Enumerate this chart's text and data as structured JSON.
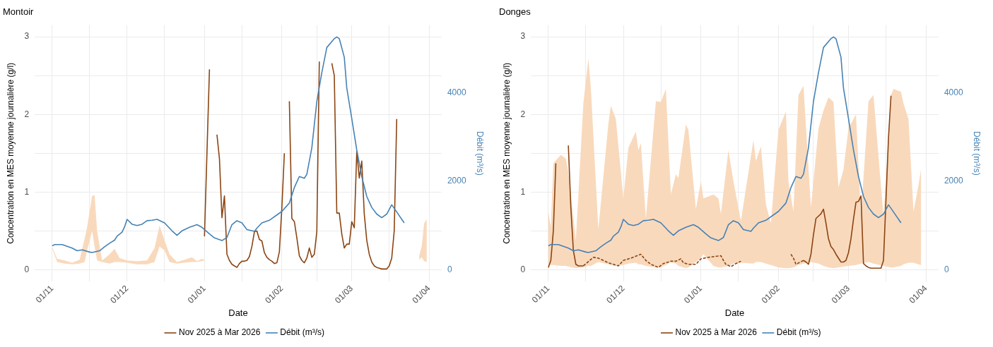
{
  "chart_data": [
    {
      "type": "line",
      "title": "Montoir",
      "xlabel": "Date",
      "ylabel": "Concentration en MES moyenne journalière (g/l)",
      "y2label": "Débit (m³/s)",
      "xlim": [
        "2025-10-25",
        "2026-04-06"
      ],
      "xticks": [
        {
          "value": "2025-11-01",
          "label": "01/11"
        },
        {
          "value": "2025-11-16",
          "label": null
        },
        {
          "value": "2025-12-01",
          "label": "01/12"
        },
        {
          "value": "2025-12-16",
          "label": null
        },
        {
          "value": "2026-01-01",
          "label": "01/01"
        },
        {
          "value": "2026-01-16",
          "label": null
        },
        {
          "value": "2026-02-01",
          "label": "01/02"
        },
        {
          "value": "2026-02-15",
          "label": null
        },
        {
          "value": "2026-03-01",
          "label": "01/03"
        },
        {
          "value": "2026-03-16",
          "label": null
        },
        {
          "value": "2026-04-01",
          "label": "01/04"
        }
      ],
      "ylim": [
        -0.15,
        3.15
      ],
      "yticks": [
        0,
        {
          "value": 0.5,
          "label": null
        },
        1,
        {
          "value": 1.5,
          "label": null
        },
        2,
        {
          "value": 2.5,
          "label": null
        },
        3
      ],
      "y2lim": [
        -264,
        5537
      ],
      "y2ticks": [
        0,
        2000,
        4000
      ],
      "grid": true,
      "legend": "bottom",
      "series": [
        {
          "type": "area",
          "color": "#f9d9bc",
          "values": [
            null,
            null,
            null,
            null,
            null,
            null,
            null,
            null,
            null,
            null,
            null,
            null,
            null,
            null,
            null,
            null,
            null,
            null,
            null,
            null,
            null,
            null,
            null,
            null,
            null,
            null,
            null,
            null,
            null,
            null,
            null,
            null
          ],
          "x": [
            "2025-11-01",
            "2025-11-03",
            "2025-11-06",
            "2025-11-09",
            "2025-11-12",
            "2025-11-14",
            "2025-11-15",
            "2025-11-17",
            "2025-11-18",
            "2025-11-19",
            "2025-11-21",
            "2025-11-24",
            "2025-11-26",
            "2025-11-28",
            "2025-12-01",
            "2025-12-05",
            "2025-12-09",
            "2025-12-12",
            "2025-12-14",
            "2025-12-16",
            "2025-12-18",
            "2025-12-21",
            "2025-12-24",
            "2025-12-27",
            "2025-12-29",
            "2025-12-31",
            "2026-01-01",
            "2026-01-02",
            "2026-03-28",
            "2026-03-29",
            "2026-03-30",
            "2026-03-31"
          ],
          "lower": [
            0.27,
            0.1,
            0.08,
            0.07,
            0.08,
            0.1,
            0.25,
            0.5,
            0.3,
            0.12,
            0.1,
            0.08,
            0.1,
            0.1,
            0.09,
            0.07,
            0.07,
            0.1,
            0.3,
            0.25,
            0.1,
            0.08,
            0.09,
            0.1,
            0.1,
            0.11,
            0.12,
            null,
            0.13,
            0.16,
            0.11,
            0.1
          ],
          "upper": [
            0.29,
            0.14,
            0.12,
            0.09,
            0.13,
            0.4,
            0.55,
            0.95,
            0.96,
            0.5,
            0.12,
            0.2,
            0.27,
            0.15,
            0.12,
            0.11,
            0.12,
            0.28,
            0.57,
            0.38,
            0.2,
            0.1,
            0.13,
            0.16,
            0.11,
            0.14,
            0.13,
            null,
            0.18,
            0.3,
            0.6,
            0.65
          ]
        },
        {
          "name": "Nov 2025 à Mar 2026",
          "color": "#8b4513",
          "x": [
            "2026-01-01",
            "2026-01-03",
            "2026-01-04",
            "2026-01-06",
            "2026-01-07",
            "2026-01-08",
            "2026-01-09",
            "2026-01-10",
            "2026-01-11",
            "2026-01-12",
            "2026-01-13",
            "2026-01-14",
            "2026-01-15",
            "2026-01-16",
            "2026-01-17",
            "2026-01-18",
            "2026-01-19",
            "2026-01-20",
            "2026-01-21",
            "2026-01-22",
            "2026-01-23",
            "2026-01-24",
            "2026-01-25",
            "2026-01-26",
            "2026-01-27",
            "2026-01-28",
            "2026-01-29",
            "2026-01-30",
            "2026-01-31",
            "2026-02-01",
            "2026-02-02",
            "2026-02-03",
            "2026-02-04",
            "2026-02-05",
            "2026-02-06",
            "2026-02-07",
            "2026-02-08",
            "2026-02-09",
            "2026-02-10",
            "2026-02-11",
            "2026-02-12",
            "2026-02-13",
            "2026-02-14",
            "2026-02-15",
            "2026-02-16",
            "2026-02-17",
            "2026-02-21",
            "2026-02-22",
            "2026-02-23",
            "2026-02-24",
            "2026-02-25",
            "2026-02-26",
            "2026-02-27",
            "2026-02-28",
            "2026-03-01",
            "2026-03-02",
            "2026-03-03",
            "2026-03-04",
            "2026-03-05",
            "2026-03-06",
            "2026-03-07",
            "2026-03-08",
            "2026-03-09",
            "2026-03-10",
            "2026-03-11",
            "2026-03-12",
            "2026-03-13",
            "2026-03-14",
            "2026-03-15",
            "2026-03-16",
            "2026-03-17",
            "2026-03-18",
            "2026-03-19"
          ],
          "values": [
            0.43,
            2.58,
            null,
            1.74,
            1.43,
            0.67,
            0.95,
            0.2,
            0.12,
            0.07,
            0.05,
            0.03,
            0.08,
            0.11,
            0.11,
            0.12,
            0.17,
            0.3,
            0.49,
            0.5,
            0.39,
            0.37,
            0.22,
            0.16,
            0.13,
            0.11,
            0.08,
            0.09,
            0.23,
            0.8,
            1.5,
            null,
            2.17,
            0.66,
            0.62,
            0.41,
            0.18,
            0.12,
            0.09,
            0.15,
            0.28,
            0.16,
            0.2,
            0.49,
            2.68,
            null,
            2.66,
            2.5,
            0.73,
            0.73,
            0.46,
            0.28,
            0.33,
            0.33,
            0.62,
            0.54,
            1.52,
            1.18,
            1.4,
            0.72,
            0.38,
            0.2,
            0.1,
            0.05,
            0.03,
            0.02,
            0.01,
            0.01,
            0.01,
            0.05,
            0.15,
            0.5,
            1.94
          ]
        },
        {
          "name": "Débit (m³/s)",
          "color": "#4682b4",
          "axis": "y2",
          "x": [
            "2025-11-01",
            "2025-11-02",
            "2025-11-05",
            "2025-11-09",
            "2025-11-11",
            "2025-11-13",
            "2025-11-16",
            "2025-11-17",
            "2025-11-20",
            "2025-11-22",
            "2025-11-24",
            "2025-11-26",
            "2025-11-27",
            "2025-11-29",
            "2025-11-30",
            "2025-12-01",
            "2025-12-03",
            "2025-12-05",
            "2025-12-07",
            "2025-12-09",
            "2025-12-11",
            "2025-12-13",
            "2025-12-16",
            "2025-12-19",
            "2025-12-21",
            "2025-12-23",
            "2025-12-26",
            "2025-12-29",
            "2025-12-31",
            "2026-01-03",
            "2026-01-05",
            "2026-01-08",
            "2026-01-10",
            "2026-01-12",
            "2026-01-14",
            "2026-01-16",
            "2026-01-18",
            "2026-01-21",
            "2026-01-22",
            "2026-01-24",
            "2026-01-27",
            "2026-01-30",
            "2026-02-01",
            "2026-02-04",
            "2026-02-06",
            "2026-02-08",
            "2026-02-10",
            "2026-02-11",
            "2026-02-13",
            "2026-02-15",
            "2026-02-17",
            "2026-02-19",
            "2026-02-22",
            "2026-02-23",
            "2026-02-24",
            "2026-02-26",
            "2026-02-27",
            "2026-03-01",
            "2026-03-03",
            "2026-03-05",
            "2026-03-07",
            "2026-03-09",
            "2026-03-11",
            "2026-03-13",
            "2026-03-15",
            "2026-03-17",
            "2026-03-18",
            "2026-03-22"
          ],
          "values": [
            540,
            570,
            570,
            490,
            430,
            450,
            400,
            390,
            430,
            520,
            600,
            670,
            760,
            850,
            970,
            1140,
            1030,
            1000,
            1030,
            1110,
            1120,
            1140,
            1060,
            880,
            780,
            880,
            960,
            1020,
            960,
            810,
            720,
            660,
            730,
            1020,
            1110,
            1060,
            910,
            870,
            940,
            1060,
            1120,
            1240,
            1320,
            1510,
            1860,
            2110,
            2070,
            2160,
            2760,
            3810,
            4460,
            5030,
            5230,
            5270,
            5230,
            4810,
            4110,
            3420,
            2710,
            2110,
            1660,
            1410,
            1260,
            1180,
            1260,
            1470,
            1390,
            1060
          ]
        }
      ]
    },
    {
      "type": "line",
      "title": "Donges",
      "xlabel": "Date",
      "ylabel": "Concentration en MES moyenne journalière (g/l)",
      "y2label": "Débit (m³/s)",
      "xlim": [
        "2025-10-25",
        "2026-04-06"
      ],
      "xticks": [
        {
          "value": "2025-11-01",
          "label": "01/11"
        },
        {
          "value": "2025-11-16",
          "label": null
        },
        {
          "value": "2025-12-01",
          "label": "01/12"
        },
        {
          "value": "2025-12-16",
          "label": null
        },
        {
          "value": "2026-01-01",
          "label": "01/01"
        },
        {
          "value": "2026-01-16",
          "label": null
        },
        {
          "value": "2026-02-01",
          "label": "01/02"
        },
        {
          "value": "2026-02-15",
          "label": null
        },
        {
          "value": "2026-03-01",
          "label": "01/03"
        },
        {
          "value": "2026-03-16",
          "label": null
        },
        {
          "value": "2026-04-01",
          "label": "01/04"
        }
      ],
      "ylim": [
        -0.15,
        3.15
      ],
      "yticks": [
        0,
        {
          "value": 0.5,
          "label": null
        },
        1,
        {
          "value": 1.5,
          "label": null
        },
        2,
        {
          "value": 2.5,
          "label": null
        },
        3
      ],
      "y2lim": [
        -264,
        5537
      ],
      "y2ticks": [
        0,
        2000,
        4000
      ],
      "grid": true,
      "legend": "bottom",
      "series": [
        {
          "type": "area",
          "color": "#f9d9bc",
          "values": [
            null,
            null,
            null,
            null,
            null,
            null,
            null,
            null,
            null,
            null,
            null,
            null,
            null,
            null,
            null,
            null,
            null,
            null,
            null,
            null,
            null,
            null,
            null,
            null,
            null,
            null,
            null,
            null,
            null,
            null,
            null,
            null,
            null,
            null,
            null,
            null,
            null,
            null,
            null,
            null,
            null,
            null,
            null,
            null,
            null,
            null,
            null,
            null,
            null,
            null,
            null,
            null,
            null,
            null,
            null,
            null,
            null,
            null,
            null,
            null,
            null,
            null,
            null,
            null,
            null,
            null,
            null,
            null,
            null
          ],
          "x": [
            "2025-11-01",
            "2025-11-02",
            "2025-11-03",
            "2025-11-06",
            "2025-11-08",
            "2025-11-09",
            "2025-11-12",
            "2025-11-15",
            "2025-11-17",
            "2025-11-18",
            "2025-11-21",
            "2025-11-25",
            "2025-11-26",
            "2025-11-28",
            "2025-12-01",
            "2025-12-03",
            "2025-12-06",
            "2025-12-07",
            "2025-12-08",
            "2025-12-10",
            "2025-12-14",
            "2025-12-16",
            "2025-12-18",
            "2025-12-20",
            "2025-12-22",
            "2025-12-23",
            "2025-12-26",
            "2025-12-27",
            "2025-12-30",
            "2026-01-01",
            "2026-01-02",
            "2026-01-06",
            "2026-01-08",
            "2026-01-09",
            "2026-01-12",
            "2026-01-14",
            "2026-01-17",
            "2026-01-22",
            "2026-01-23",
            "2026-01-25",
            "2026-01-27",
            "2026-01-29",
            "2026-02-01",
            "2026-02-04",
            "2026-02-05",
            "2026-02-07",
            "2026-02-09",
            "2026-02-11",
            "2026-02-14",
            "2026-02-17",
            "2026-02-19",
            "2026-02-21",
            "2026-02-23",
            "2026-02-25",
            "2026-02-27",
            "2026-03-01",
            "2026-03-04",
            "2026-03-06",
            "2026-03-09",
            "2026-03-11",
            "2026-03-15",
            "2026-03-18",
            "2026-03-19",
            "2026-03-22",
            "2026-03-23",
            "2026-03-25",
            "2026-03-27",
            "2026-03-29",
            "2026-03-30"
          ],
          "lower": [
            0.07,
            0.06,
            0.06,
            0.05,
            0.05,
            0.04,
            0.02,
            0.03,
            0.05,
            0.05,
            0.1,
            0.07,
            0.06,
            0.05,
            0.06,
            0.08,
            0.09,
            0.07,
            0.07,
            0.05,
            0.03,
            0.03,
            0.06,
            0.1,
            0.08,
            0.05,
            0.02,
            0.03,
            0.1,
            0.15,
            0.2,
            0.05,
            0.03,
            0.03,
            0.05,
            0.08,
            0.09,
            0.08,
            0.1,
            0.1,
            0.08,
            0.06,
            0.03,
            0.02,
            0.02,
            0.03,
            0.06,
            0.08,
            0.1,
            0.08,
            0.05,
            0.03,
            0.02,
            0.03,
            0.04,
            0.05,
            0.06,
            0.08,
            0.1,
            0.08,
            0.05,
            0.03,
            0.03,
            0.05,
            0.07,
            0.09,
            0.09,
            0.07,
            0.06
          ],
          "upper": [
            0.75,
            0.55,
            1.37,
            1.48,
            1.43,
            1.26,
            0.38,
            2.14,
            2.72,
            2.34,
            0.52,
            1.88,
            2.11,
            1.94,
            0.92,
            1.57,
            1.78,
            1.54,
            1.63,
            0.66,
            2.17,
            2.16,
            2.33,
            0.97,
            1.23,
            1.18,
            1.87,
            1.8,
            0.78,
            1.14,
            0.92,
            0.97,
            0.92,
            0.72,
            1.54,
            1.14,
            0.63,
            1.67,
            1.4,
            1.59,
            0.84,
            0.6,
            1.8,
            2.04,
            1.14,
            0.75,
            2.25,
            2.37,
            0.8,
            1.82,
            2.05,
            2.22,
            2.16,
            1.06,
            1.29,
            1.82,
            2.0,
            0.69,
            2.17,
            2.25,
            0.69,
            2.25,
            2.33,
            2.29,
            2.14,
            1.94,
            0.75,
            1.09,
            1.29
          ]
        },
        {
          "color": "#8b4513",
          "line_style": "dashed",
          "x": [
            "2025-11-15",
            "2025-11-19",
            "2025-11-21",
            "2025-11-23",
            "2025-11-25",
            "2025-11-27",
            "2025-11-29",
            "2025-12-01",
            "2025-12-04",
            "2025-12-08",
            "2025-12-10",
            "2025-12-12",
            "2025-12-15",
            "2025-12-17",
            "2025-12-20",
            "2025-12-22",
            "2025-12-24",
            "2025-12-25",
            "2025-12-27",
            "2025-12-30",
            "2026-01-01",
            "2026-01-04",
            "2026-01-09",
            "2026-01-10",
            "2026-01-11",
            "2026-01-13",
            "2026-01-15",
            "2026-01-17",
            "2026-01-18",
            "2026-02-06",
            "2026-02-07",
            "2026-02-08",
            "2026-02-11"
          ],
          "values": [
            0.05,
            0.16,
            0.15,
            0.12,
            0.09,
            0.07,
            0.05,
            0.12,
            0.15,
            0.2,
            0.12,
            0.07,
            0.03,
            0.08,
            0.11,
            0.11,
            0.14,
            0.09,
            0.07,
            0.07,
            0.14,
            0.16,
            0.18,
            0.12,
            0.07,
            0.04,
            0.08,
            0.11,
            null,
            0.2,
            0.15,
            0.07,
            0.12
          ]
        },
        {
          "name": "Nov 2025 à Mar 2026",
          "color": "#8b4513",
          "x": [
            "2025-11-01",
            "2025-11-02",
            "2025-11-03",
            "2025-11-04",
            "2025-11-05",
            "2025-11-09",
            "2025-11-10",
            "2025-11-11",
            "2025-11-12",
            "2025-11-13",
            "2025-11-14",
            "2025-11-15",
            "2025-11-16",
            "2026-02-11",
            "2026-02-12",
            "2026-02-13",
            "2026-02-14",
            "2026-02-15",
            "2026-02-16",
            "2026-02-17",
            "2026-02-18",
            "2026-02-19",
            "2026-02-20",
            "2026-02-21",
            "2026-02-22",
            "2026-02-23",
            "2026-02-24",
            "2026-02-25",
            "2026-02-26",
            "2026-02-27",
            "2026-02-28",
            "2026-03-01",
            "2026-03-02",
            "2026-03-03",
            "2026-03-04",
            "2026-03-05",
            "2026-03-06",
            "2026-03-07",
            "2026-03-08",
            "2026-03-09",
            "2026-03-10",
            "2026-03-11",
            "2026-03-12",
            "2026-03-13",
            "2026-03-14",
            "2026-03-15",
            "2026-03-16",
            "2026-03-17",
            "2026-03-18"
          ],
          "values": [
            0.03,
            0.12,
            0.5,
            1.37,
            null,
            1.6,
            0.8,
            0.25,
            0.07,
            0.05,
            0.05,
            0.05,
            null,
            0.12,
            0.1,
            0.07,
            0.2,
            0.45,
            0.66,
            0.69,
            0.72,
            0.78,
            0.6,
            0.4,
            0.3,
            0.26,
            0.2,
            0.15,
            0.1,
            0.1,
            0.12,
            0.22,
            0.4,
            0.65,
            0.87,
            0.88,
            0.95,
            0.08,
            0.05,
            0.03,
            0.02,
            0.02,
            0.02,
            0.02,
            0.02,
            0.12,
            0.9,
            1.7,
            2.24
          ]
        },
        {
          "name": "Débit (m³/s)",
          "color": "#4682b4",
          "axis": "y2",
          "x": [
            "2025-11-01",
            "2025-11-02",
            "2025-11-05",
            "2025-11-09",
            "2025-11-11",
            "2025-11-13",
            "2025-11-16",
            "2025-11-17",
            "2025-11-20",
            "2025-11-22",
            "2025-11-24",
            "2025-11-26",
            "2025-11-27",
            "2025-11-29",
            "2025-11-30",
            "2025-12-01",
            "2025-12-03",
            "2025-12-05",
            "2025-12-07",
            "2025-12-09",
            "2025-12-11",
            "2025-12-13",
            "2025-12-16",
            "2025-12-19",
            "2025-12-21",
            "2025-12-23",
            "2025-12-26",
            "2025-12-29",
            "2025-12-31",
            "2026-01-03",
            "2026-01-05",
            "2026-01-08",
            "2026-01-10",
            "2026-01-12",
            "2026-01-14",
            "2026-01-16",
            "2026-01-18",
            "2026-01-21",
            "2026-01-22",
            "2026-01-24",
            "2026-01-27",
            "2026-01-30",
            "2026-02-01",
            "2026-02-04",
            "2026-02-06",
            "2026-02-08",
            "2026-02-10",
            "2026-02-11",
            "2026-02-13",
            "2026-02-15",
            "2026-02-17",
            "2026-02-19",
            "2026-02-22",
            "2026-02-23",
            "2026-02-24",
            "2026-02-26",
            "2026-02-27",
            "2026-03-01",
            "2026-03-03",
            "2026-03-05",
            "2026-03-07",
            "2026-03-09",
            "2026-03-11",
            "2026-03-13",
            "2026-03-15",
            "2026-03-17",
            "2026-03-18",
            "2026-03-22"
          ],
          "values": [
            540,
            570,
            570,
            490,
            430,
            450,
            400,
            390,
            430,
            520,
            600,
            670,
            760,
            850,
            970,
            1140,
            1030,
            1000,
            1030,
            1110,
            1120,
            1140,
            1060,
            880,
            780,
            880,
            960,
            1020,
            960,
            810,
            720,
            660,
            730,
            1020,
            1110,
            1060,
            910,
            870,
            940,
            1060,
            1120,
            1240,
            1320,
            1510,
            1860,
            2110,
            2070,
            2160,
            2760,
            3810,
            4460,
            5030,
            5230,
            5270,
            5230,
            4810,
            4110,
            3420,
            2710,
            2110,
            1660,
            1410,
            1260,
            1180,
            1260,
            1470,
            1390,
            1060
          ]
        }
      ]
    }
  ]
}
